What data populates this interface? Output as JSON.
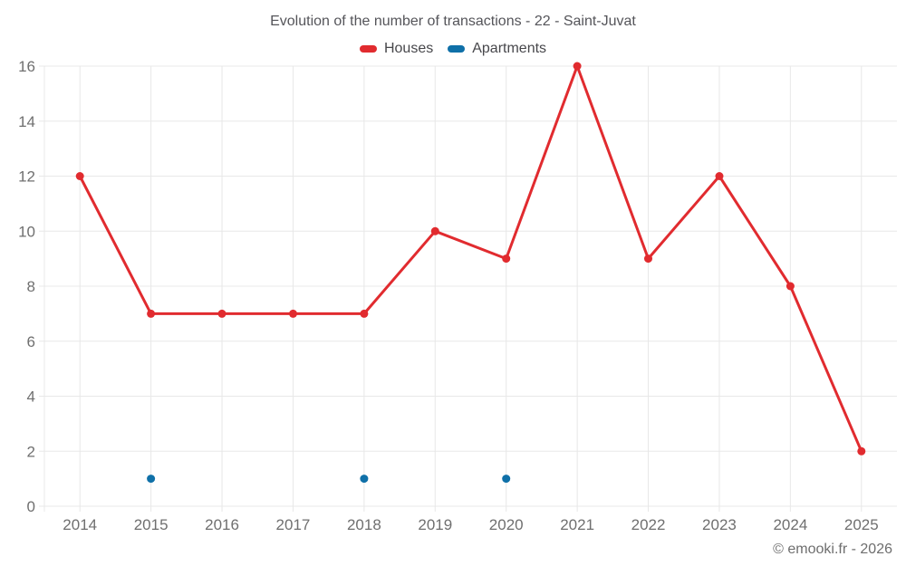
{
  "header": {
    "title": "Evolution of the number of transactions - 22 - Saint-Juvat"
  },
  "footer": {
    "copyright": "© emooki.fr - 2026"
  },
  "chart_data": {
    "type": "line",
    "title": "Evolution of the number of transactions - 22 - Saint-Juvat",
    "categories": [
      "2014",
      "2015",
      "2016",
      "2017",
      "2018",
      "2019",
      "2020",
      "2021",
      "2022",
      "2023",
      "2024",
      "2025"
    ],
    "series": [
      {
        "name": "Houses",
        "color": "#e12b2f",
        "marker_radius": 4.5,
        "line_width": 3,
        "values": [
          12,
          7,
          7,
          7,
          7,
          10,
          9,
          16,
          9,
          12,
          8,
          2
        ]
      },
      {
        "name": "Apartments",
        "color": "#0f70a8",
        "marker_radius": 4.5,
        "line_width": 3,
        "values": [
          null,
          1,
          null,
          null,
          1,
          null,
          1,
          null,
          null,
          null,
          null,
          null
        ]
      }
    ],
    "xlabel": "",
    "ylabel": "",
    "ylim": [
      0,
      16
    ],
    "yticks": [
      0,
      2,
      4,
      6,
      8,
      10,
      12,
      14,
      16
    ],
    "grid": true,
    "legend_position": "top",
    "colors": {
      "grid": "#e8e8e8",
      "tick_label": "#6f6f6f"
    }
  }
}
